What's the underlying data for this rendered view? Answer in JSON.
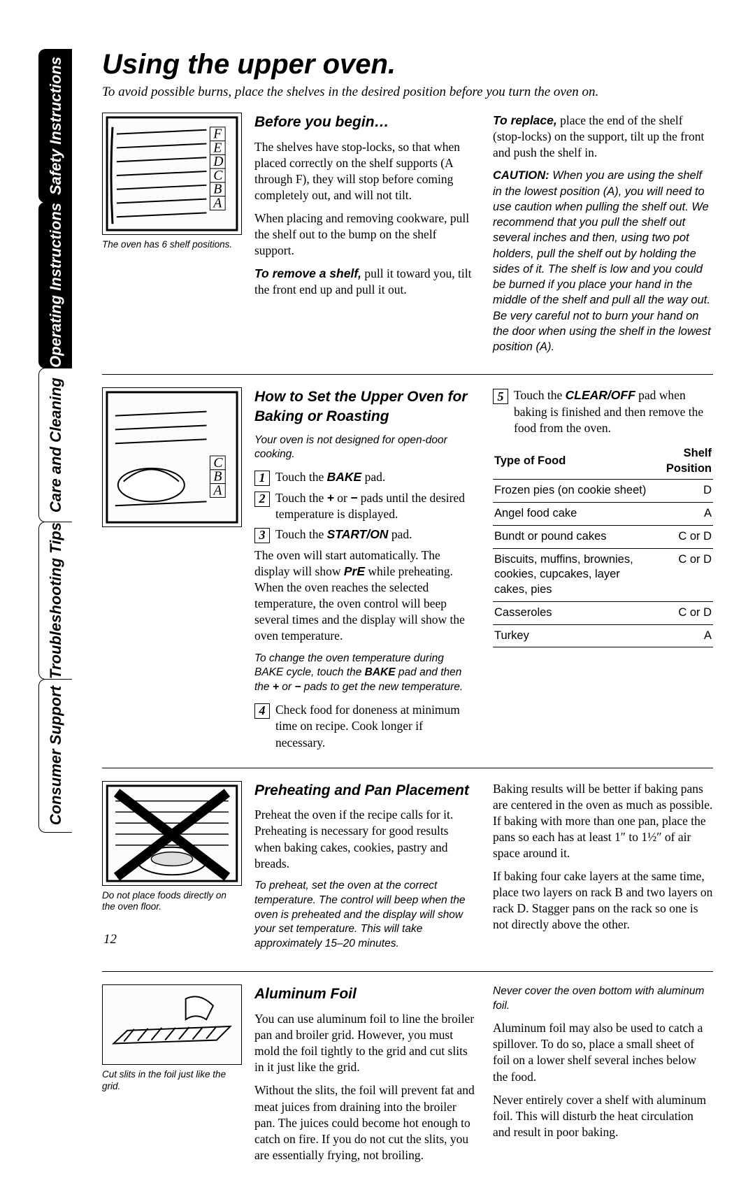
{
  "sidebar": {
    "tabs": [
      {
        "label": "Safety Instructions",
        "active": true
      },
      {
        "label": "Operating Instructions",
        "active": true
      },
      {
        "label": "Care and Cleaning",
        "active": false
      },
      {
        "label": "Troubleshooting Tips",
        "active": false
      },
      {
        "label": "Consumer Support",
        "active": false
      }
    ]
  },
  "page_number": "12",
  "title": "Using the upper oven.",
  "subtitle": "To avoid possible burns, place the shelves in the desired position before you turn the oven on.",
  "s1": {
    "heading": "Before you begin…",
    "caption": "The oven has 6 shelf positions.",
    "shelf_letters": [
      "F",
      "E",
      "D",
      "C",
      "B",
      "A"
    ],
    "p1": "The shelves have stop-locks, so that when placed correctly on the shelf supports (A through F), they will stop before coming completely out, and will not tilt.",
    "p2": "When placing and removing cookware, pull the shelf out to the bump on the shelf support.",
    "p3_lead": "To remove a shelf,",
    "p3_rest": " pull it toward you, tilt the front end up and pull it out.",
    "p4_lead": "To replace,",
    "p4_rest": " place the end of the shelf (stop-locks) on the support, tilt up the front and push the shelf in.",
    "caution_lead": "CAUTION:",
    "caution": " When you are using the shelf in the lowest position (A), you will need to use caution when pulling the shelf out. We recommend that you pull the shelf out several inches and then, using two pot holders, pull the shelf out by holding the sides of it. The shelf is low and you could be burned if you place your hand in the middle of the shelf and pull all the way out. Be very careful not to burn your hand on the door when using the shelf in the lowest position (A)."
  },
  "s2": {
    "heading": "How to Set the Upper Oven for Baking or Roasting",
    "note": "Your oven is not designed for open-door cooking.",
    "shelf_letters": [
      "C",
      "B",
      "A"
    ],
    "step1": "Touch the ",
    "step1b": "BAKE",
    "step1c": " pad.",
    "step2": "Touch the ",
    "step2b": "+",
    "step2c": " or ",
    "step2d": "−",
    "step2e": " pads until the desired temperature is displayed.",
    "step3": "Touch the ",
    "step3b": "START/ON",
    "step3c": " pad.",
    "p1a": "The oven will start automatically. The display will show ",
    "p1b": "PrE",
    "p1c": " while preheating. When the oven reaches the selected temperature, the oven control will beep several times and the display will show the oven temperature.",
    "p2": "To change the oven temperature during BAKE cycle, touch the ",
    "p2b": "BAKE",
    "p2c": " pad and then the ",
    "p2d": "+",
    "p2e": " or ",
    "p2f": "−",
    "p2g": " pads to get the new temperature.",
    "step4": "Check food for doneness at minimum time on recipe. Cook longer if necessary.",
    "step5a": "Touch the ",
    "step5b": "CLEAR/OFF",
    "step5c": " pad when baking is finished and then remove the food from the oven.",
    "table_header_food": "Type of Food",
    "table_header_pos": "Shelf Position",
    "table": [
      {
        "food": "Frozen pies (on cookie sheet)",
        "pos": "D"
      },
      {
        "food": "Angel food cake",
        "pos": "A"
      },
      {
        "food": "Bundt or pound cakes",
        "pos": "C or D"
      },
      {
        "food": "Biscuits, muffins, brownies, cookies, cupcakes, layer cakes, pies",
        "pos": "C or D"
      },
      {
        "food": "Casseroles",
        "pos": "C or D"
      },
      {
        "food": "Turkey",
        "pos": "A"
      }
    ]
  },
  "s3": {
    "heading": "Preheating and Pan Placement",
    "caption": "Do not place foods directly on the oven floor.",
    "p1": "Preheat the oven if the recipe calls for it. Preheating is necessary for good results when baking cakes, cookies, pastry and breads.",
    "p2": "To preheat, set the oven at the correct temperature. The control will beep when the oven is preheated and the display will show your set temperature. This will take approximately 15–20 minutes.",
    "p3": "Baking results will be better if baking pans are centered in the oven as much as possible. If baking with more than one pan, place the pans so each has at least 1″ to 1½″ of air space around it.",
    "p4": "If baking four cake layers at the same time, place two layers on rack B and two layers on rack D. Stagger pans on the rack so one is not directly above the other."
  },
  "s4": {
    "heading": "Aluminum Foil",
    "caption": "Cut slits in the foil just like the grid.",
    "p1": "You can use aluminum foil to line the broiler pan and broiler grid. However, you must mold the foil tightly to the grid and cut slits in it just like the grid.",
    "p2": "Without the slits, the foil will prevent fat and meat juices from draining into the broiler pan. The juices could become hot enough to catch on fire. If you do not cut the slits, you are essentially frying, not broiling.",
    "p3": "Never cover the oven bottom with aluminum foil.",
    "p4": "Aluminum foil may also be used to catch a spillover. To do so, place a small sheet of foil on a lower shelf several inches below the food.",
    "p5": "Never entirely cover a shelf with aluminum foil. This will disturb the heat circulation and result in poor baking."
  }
}
